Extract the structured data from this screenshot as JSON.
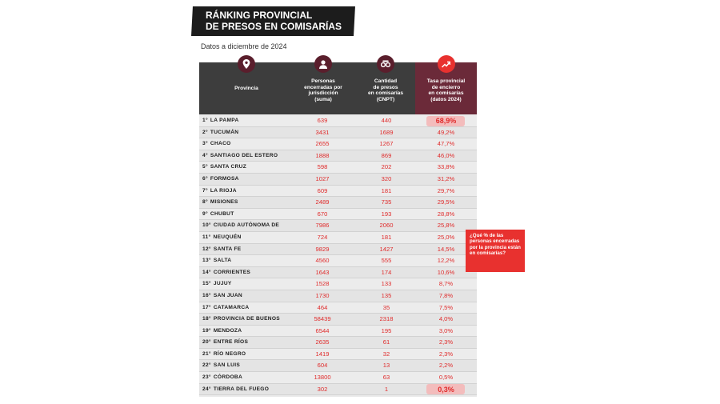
{
  "header": {
    "title_line1": "RÁNKING PROVINCIAL",
    "title_line2": "DE PRESOS EN COMISARÍAS",
    "subtitle": "Datos a diciembre de 2024"
  },
  "columns": [
    {
      "label": "Provincia",
      "icon": "location-pin-icon"
    },
    {
      "label_lines": [
        "Personas",
        "encerradas por",
        "jurisdicción",
        "(suma)"
      ],
      "icon": "person-icon"
    },
    {
      "label_lines": [
        "Cantidad",
        "de presos",
        "en comisarías",
        "(CNPT)"
      ],
      "icon": "handcuffs-icon"
    },
    {
      "label_lines": [
        "Tasa provincial",
        "de encierro",
        "en comisarías",
        "(datos 2024)"
      ],
      "icon": "trend-up-icon"
    }
  ],
  "colors": {
    "header_bg": "#3d3d3d",
    "accent_col": "#6b2a39",
    "icon_bg": "#5a1e2c",
    "red": "#e8312f",
    "value_text": "#e02b2b"
  },
  "callout": {
    "text": "¿Qué % de las personas encerradas por la provincia están en comisarías?"
  },
  "chart_data": {
    "type": "table",
    "title": "RÁNKING PROVINCIAL DE PRESOS EN COMISARÍAS",
    "subtitle": "Datos a diciembre de 2024",
    "columns": [
      "Provincia",
      "Personas encerradas por jurisdicción (suma)",
      "Cantidad de presos en comisarías (CNPT)",
      "Tasa provincial de encierro en comisarías (datos 2024)"
    ],
    "rows": [
      {
        "rank": "1°",
        "provincia": "LA PAMPA",
        "personas": "639",
        "presos": "440",
        "tasa": "68,9%"
      },
      {
        "rank": "2°",
        "provincia": "TUCUMÁN",
        "personas": "3431",
        "presos": "1689",
        "tasa": "49,2%"
      },
      {
        "rank": "3°",
        "provincia": "CHACO",
        "personas": "2655",
        "presos": "1267",
        "tasa": "47,7%"
      },
      {
        "rank": "4°",
        "provincia": "SANTIAGO DEL ESTERO",
        "personas": "1888",
        "presos": "869",
        "tasa": "46,0%"
      },
      {
        "rank": "5°",
        "provincia": "SANTA CRUZ",
        "personas": "598",
        "presos": "202",
        "tasa": "33,8%"
      },
      {
        "rank": "6°",
        "provincia": "FORMOSA",
        "personas": "1027",
        "presos": "320",
        "tasa": "31,2%"
      },
      {
        "rank": "7°",
        "provincia": "LA RIOJA",
        "personas": "609",
        "presos": "181",
        "tasa": "29,7%"
      },
      {
        "rank": "8°",
        "provincia": "MISIONES",
        "personas": "2489",
        "presos": "735",
        "tasa": "29,5%"
      },
      {
        "rank": "9°",
        "provincia": "CHUBUT",
        "personas": "670",
        "presos": "193",
        "tasa": "28,8%"
      },
      {
        "rank": "10°",
        "provincia": "CIUDAD AUTÓNOMA DE",
        "personas": "7986",
        "presos": "2060",
        "tasa": "25,8%"
      },
      {
        "rank": "11°",
        "provincia": "NEUQUÉN",
        "personas": "724",
        "presos": "181",
        "tasa": "25,0%"
      },
      {
        "rank": "12°",
        "provincia": "SANTA FE",
        "personas": "9829",
        "presos": "1427",
        "tasa": "14,5%"
      },
      {
        "rank": "13°",
        "provincia": "SALTA",
        "personas": "4560",
        "presos": "555",
        "tasa": "12,2%"
      },
      {
        "rank": "14°",
        "provincia": "CORRIENTES",
        "personas": "1643",
        "presos": "174",
        "tasa": "10,6%"
      },
      {
        "rank": "15°",
        "provincia": "JUJUY",
        "personas": "1528",
        "presos": "133",
        "tasa": "8,7%"
      },
      {
        "rank": "16°",
        "provincia": "SAN JUAN",
        "personas": "1730",
        "presos": "135",
        "tasa": "7,8%"
      },
      {
        "rank": "17°",
        "provincia": "CATAMARCA",
        "personas": "464",
        "presos": "35",
        "tasa": "7,5%"
      },
      {
        "rank": "18°",
        "provincia": "PROVINCIA DE BUENOS",
        "personas": "58439",
        "presos": "2318",
        "tasa": "4,0%"
      },
      {
        "rank": "19°",
        "provincia": "MENDOZA",
        "personas": "6544",
        "presos": "195",
        "tasa": "3,0%"
      },
      {
        "rank": "20°",
        "provincia": "ENTRE RÍOS",
        "personas": "2635",
        "presos": "61",
        "tasa": "2,3%"
      },
      {
        "rank": "21°",
        "provincia": "RÍO NEGRO",
        "personas": "1419",
        "presos": "32",
        "tasa": "2,3%"
      },
      {
        "rank": "22°",
        "provincia": "SAN LUIS",
        "personas": "604",
        "presos": "13",
        "tasa": "2,2%"
      },
      {
        "rank": "23°",
        "provincia": "CÓRDOBA",
        "personas": "13800",
        "presos": "63",
        "tasa": "0,5%"
      },
      {
        "rank": "24°",
        "provincia": "TIERRA DEL FUEGO",
        "personas": "302",
        "presos": "1",
        "tasa": "0,3%"
      }
    ],
    "highlighted_ranks": [
      "1°",
      "24°"
    ]
  }
}
